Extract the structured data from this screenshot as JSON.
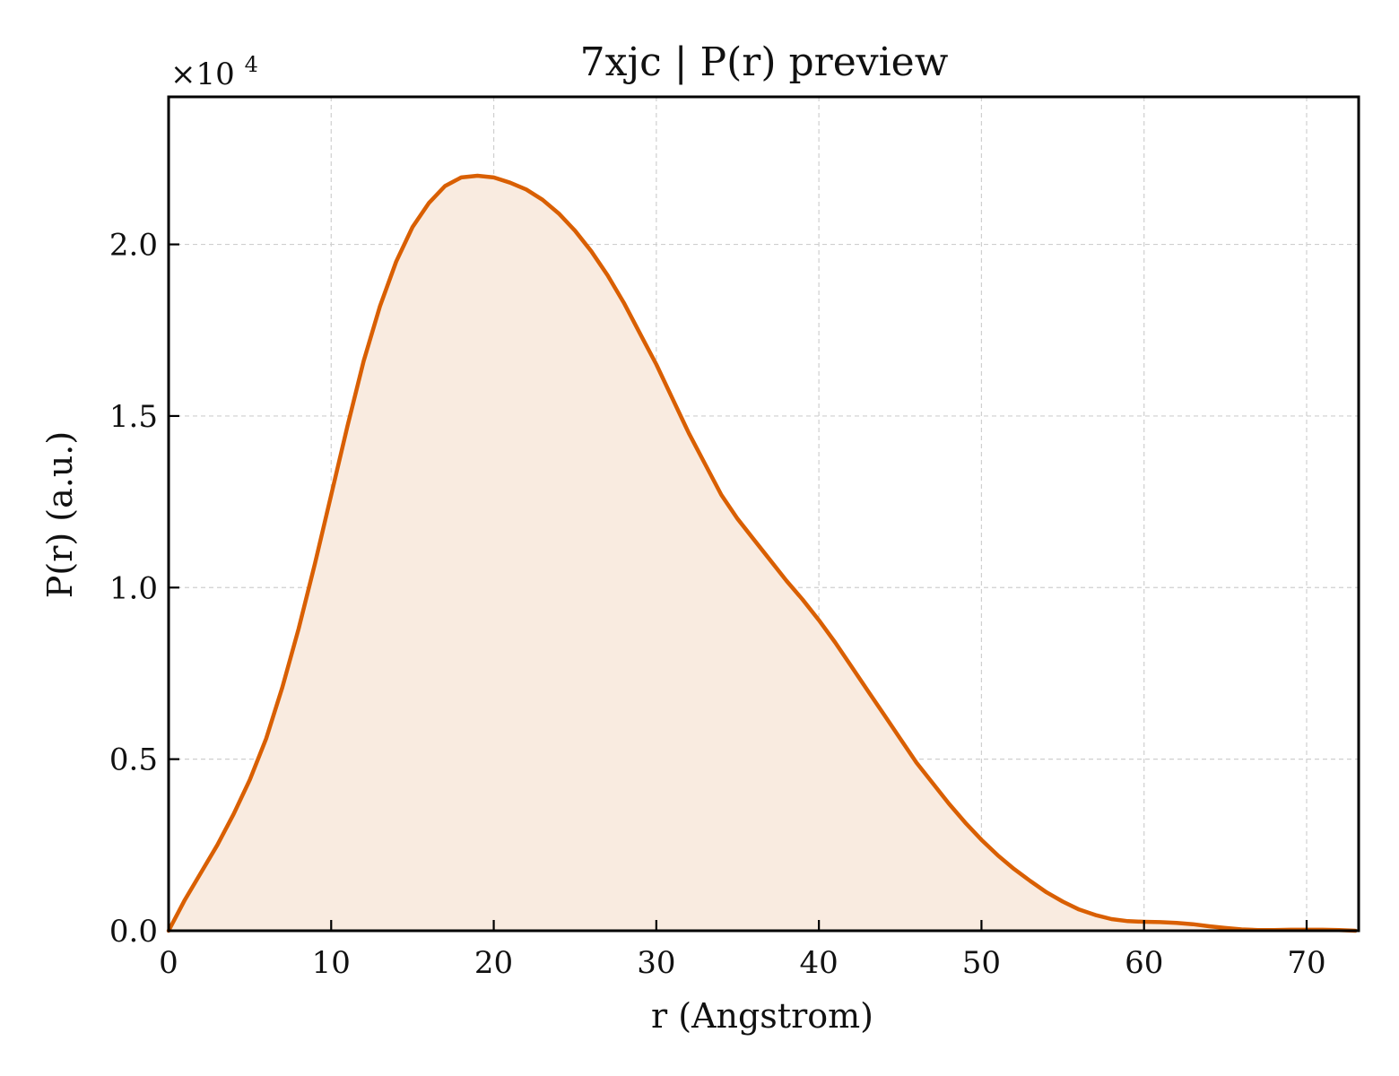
{
  "chart_data": {
    "type": "area",
    "title": "7xjc | P(r) preview",
    "xlabel": "r (Angstrom)",
    "ylabel": "P(r) (a.u.)",
    "y_offset_label": "×10",
    "y_offset_exponent": "4",
    "xlim": [
      0,
      73.2
    ],
    "ylim": [
      0,
      2.43
    ],
    "xticks": [
      0,
      10,
      20,
      30,
      40,
      50,
      60,
      70
    ],
    "xtick_labels": [
      "0",
      "10",
      "20",
      "30",
      "40",
      "50",
      "60",
      "70"
    ],
    "yticks": [
      0.0,
      0.5,
      1.0,
      1.5,
      2.0
    ],
    "ytick_labels": [
      "0.0",
      "0.5",
      "1.0",
      "1.5",
      "2.0"
    ],
    "grid": true,
    "line_color": "#d95f02",
    "fill_color": "#f9ebe0",
    "series": [
      {
        "x": [
          0,
          1,
          2,
          3,
          4,
          5,
          6,
          7,
          8,
          9,
          10,
          11,
          12,
          13,
          14,
          15,
          16,
          17,
          18,
          19,
          20,
          21,
          22,
          23,
          24,
          25,
          26,
          27,
          28,
          29,
          30,
          31,
          32,
          33,
          34,
          35,
          36,
          37,
          38,
          39,
          40,
          41,
          42,
          43,
          44,
          45,
          46,
          47,
          48,
          49,
          50,
          51,
          52,
          53,
          54,
          55,
          56,
          57,
          58,
          59,
          60,
          61,
          62,
          63,
          64,
          65,
          66,
          67,
          68,
          69,
          70,
          71,
          72,
          73
        ],
        "y": [
          0.0,
          0.09,
          0.17,
          0.25,
          0.34,
          0.44,
          0.56,
          0.71,
          0.88,
          1.07,
          1.27,
          1.47,
          1.66,
          1.82,
          1.95,
          2.05,
          2.12,
          2.17,
          2.195,
          2.2,
          2.195,
          2.18,
          2.16,
          2.13,
          2.09,
          2.04,
          1.98,
          1.91,
          1.83,
          1.74,
          1.65,
          1.55,
          1.45,
          1.36,
          1.27,
          1.2,
          1.14,
          1.08,
          1.02,
          0.965,
          0.905,
          0.84,
          0.77,
          0.7,
          0.63,
          0.56,
          0.49,
          0.43,
          0.37,
          0.315,
          0.265,
          0.22,
          0.18,
          0.145,
          0.112,
          0.085,
          0.062,
          0.046,
          0.034,
          0.028,
          0.026,
          0.025,
          0.023,
          0.019,
          0.013,
          0.008,
          0.004,
          0.002,
          0.002,
          0.003,
          0.003,
          0.003,
          0.002,
          0.0
        ]
      }
    ]
  }
}
